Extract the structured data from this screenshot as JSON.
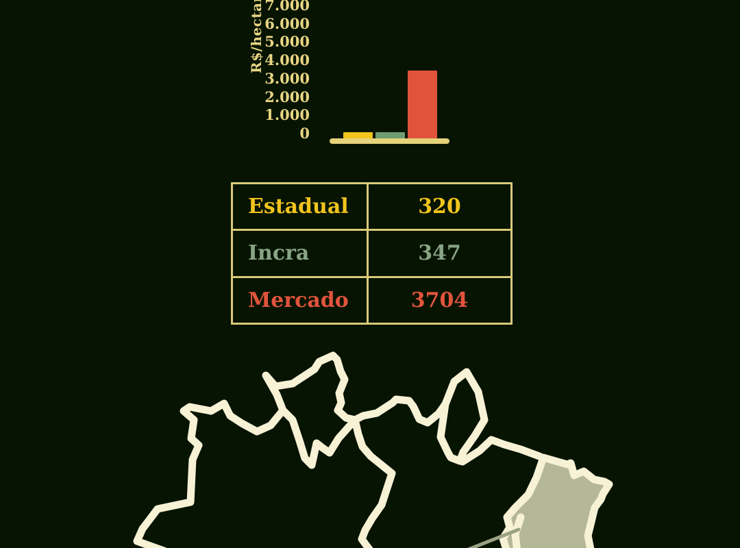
{
  "background_color": "#071402",
  "chart": {
    "y_axis_label": "R$/hectare",
    "y_ticks": [
      "7.000",
      "6.000",
      "5.000",
      "4.000",
      "3.000",
      "2.000",
      "1.000",
      "0"
    ],
    "tick_text_color": "#e8d584",
    "baseline_color": "#e5d27a"
  },
  "chart_data": {
    "type": "bar",
    "categories": [
      "Estadual",
      "Incra",
      "Mercado"
    ],
    "values": [
      320,
      347,
      3704
    ],
    "series_colors": [
      "#f1c41e",
      "#6f9d72",
      "#e2533c"
    ],
    "title": "",
    "xlabel": "",
    "ylabel": "R$/hectare",
    "ylim": [
      0,
      7000
    ],
    "y_tick_step": 1000,
    "y_tick_labels": [
      "7.000",
      "6.000",
      "5.000",
      "4.000",
      "3.000",
      "2.000",
      "1.000",
      "0"
    ],
    "grid": false,
    "legend": "none",
    "number_format": "thousands separated by dots (pt-BR)"
  },
  "table": {
    "border_color": "#d9c97b",
    "rows": [
      {
        "label": "Estadual",
        "value": "320",
        "color": "#f1c41e"
      },
      {
        "label": "Incra",
        "value": "347",
        "color": "#88a484"
      },
      {
        "label": "Mercado",
        "value": "3704",
        "color": "#e2533c"
      }
    ]
  },
  "map": {
    "outline_color": "#f7f1d5",
    "highlighted_region_fill": "#b5b898",
    "leader_line_color": "#9ba285"
  }
}
